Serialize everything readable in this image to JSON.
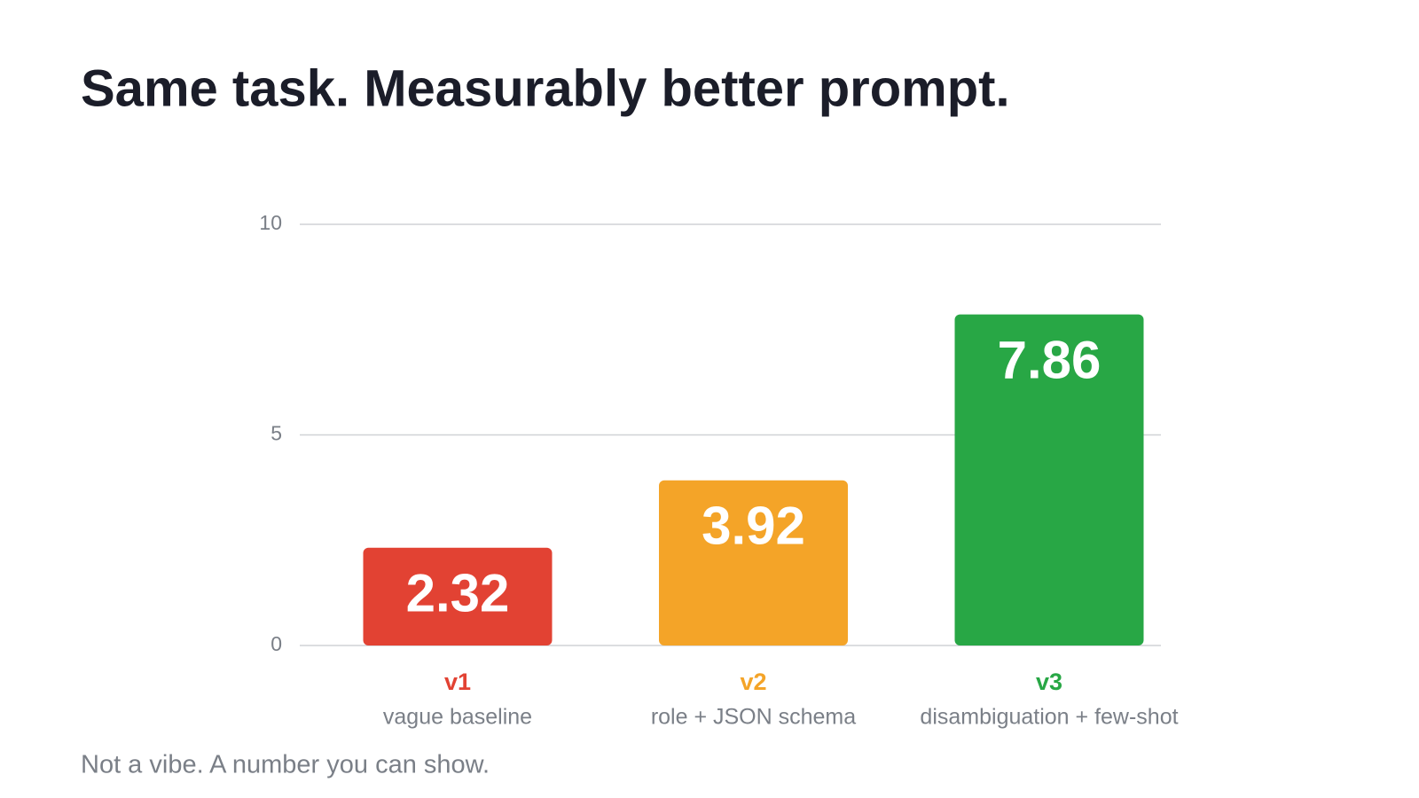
{
  "chart_data": {
    "type": "bar",
    "title": "Same task. Measurably better prompt.",
    "categories": [
      "v1",
      "v2",
      "v3"
    ],
    "category_subtitles": [
      "vague baseline",
      "role + JSON schema",
      "disambiguation + few-shot"
    ],
    "values": [
      2.32,
      3.92,
      7.86
    ],
    "colors": [
      "#e24233",
      "#f4a428",
      "#28a745"
    ],
    "ylim": [
      0,
      10
    ],
    "yticks": [
      0,
      5,
      10
    ],
    "grid": true,
    "footnote": "Not a vibe. A number you can show."
  }
}
